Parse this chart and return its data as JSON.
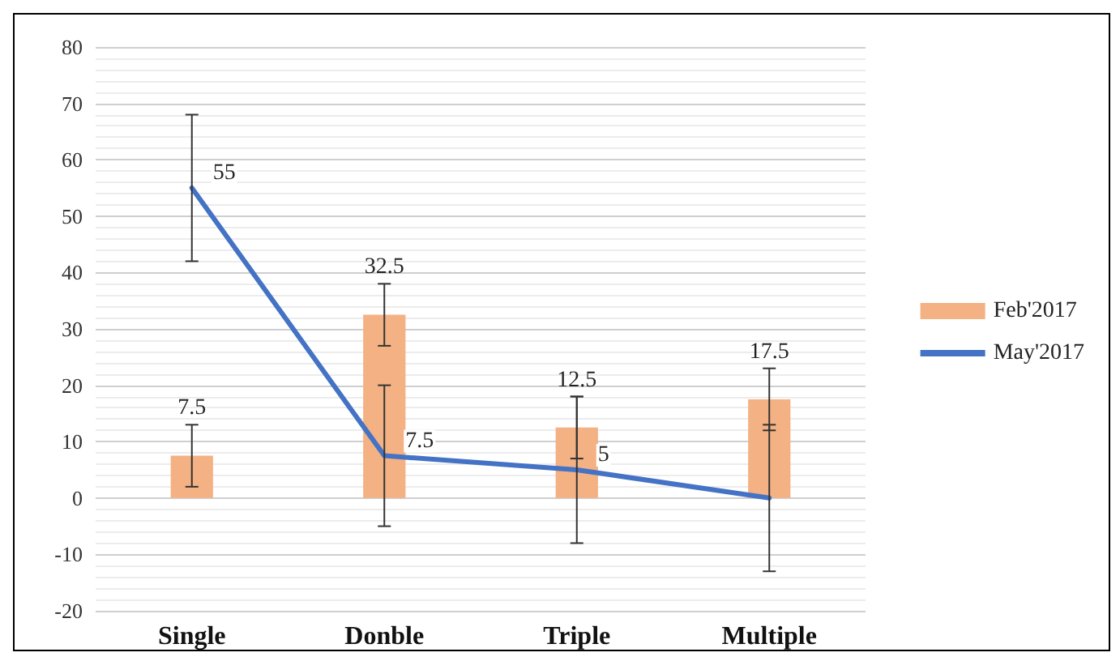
{
  "chart_data": {
    "type": "bar",
    "categories": [
      "Single",
      "Donble",
      "Triple",
      "Multiple"
    ],
    "series": [
      {
        "name": "Feb'2017",
        "color": "#f4b183",
        "values": [
          7.5,
          32.5,
          12.5,
          17.5
        ],
        "errors": [
          5.5,
          5.5,
          5.5,
          5.5
        ],
        "value_labels": [
          "7.5",
          "32.5",
          "12.5",
          "17.5"
        ]
      },
      {
        "name": "May'2017",
        "type": "line",
        "color": "#4472c4",
        "values": [
          55,
          7.5,
          5,
          0
        ],
        "errors": [
          13,
          12.5,
          13,
          13
        ],
        "value_labels": [
          "55",
          "7.5",
          "5",
          null
        ]
      }
    ],
    "ylim": [
      -20,
      80
    ],
    "yticks": [
      -20,
      -10,
      0,
      10,
      20,
      30,
      40,
      50,
      60,
      70,
      80
    ],
    "grid": "y",
    "legend": "right",
    "marker": "none",
    "line_style": "solid"
  }
}
